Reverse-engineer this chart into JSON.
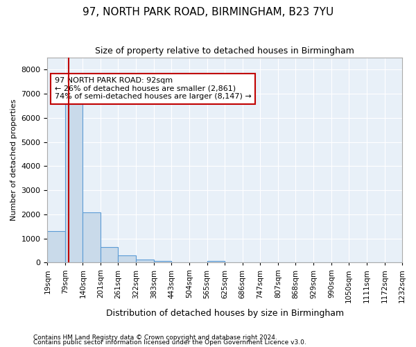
{
  "title": "97, NORTH PARK ROAD, BIRMINGHAM, B23 7YU",
  "subtitle": "Size of property relative to detached houses in Birmingham",
  "xlabel": "Distribution of detached houses by size in Birmingham",
  "ylabel": "Number of detached properties",
  "footnote1": "Contains HM Land Registry data © Crown copyright and database right 2024.",
  "footnote2": "Contains public sector information licensed under the Open Government Licence v3.0.",
  "annotation_line1": "97 NORTH PARK ROAD: 92sqm",
  "annotation_line2": "← 26% of detached houses are smaller (2,861)",
  "annotation_line3": "74% of semi-detached houses are larger (8,147) →",
  "property_size": 92,
  "bar_color": "#c9daea",
  "bar_edge_color": "#5b9bd5",
  "red_line_color": "#c00000",
  "annotation_box_color": "#c00000",
  "background_color": "#e8f0f8",
  "fig_background": "#ffffff",
  "ylim": [
    0,
    8500
  ],
  "yticks": [
    0,
    1000,
    2000,
    3000,
    4000,
    5000,
    6000,
    7000,
    8000
  ],
  "bin_edges": [
    19,
    79,
    140,
    201,
    261,
    322,
    383,
    443,
    504,
    565,
    625,
    686,
    747,
    807,
    868,
    929,
    990,
    1050,
    1111,
    1172,
    1232
  ],
  "bar_heights": [
    1300,
    6600,
    2080,
    650,
    300,
    140,
    60,
    5,
    0,
    60,
    0,
    0,
    0,
    0,
    0,
    0,
    0,
    0,
    0,
    0
  ],
  "grid_color": "#ffffff",
  "title_fontsize": 11,
  "subtitle_fontsize": 9,
  "ylabel_fontsize": 8,
  "xlabel_fontsize": 9,
  "tick_label_fontsize": 7.5,
  "footnote_fontsize": 6.5
}
